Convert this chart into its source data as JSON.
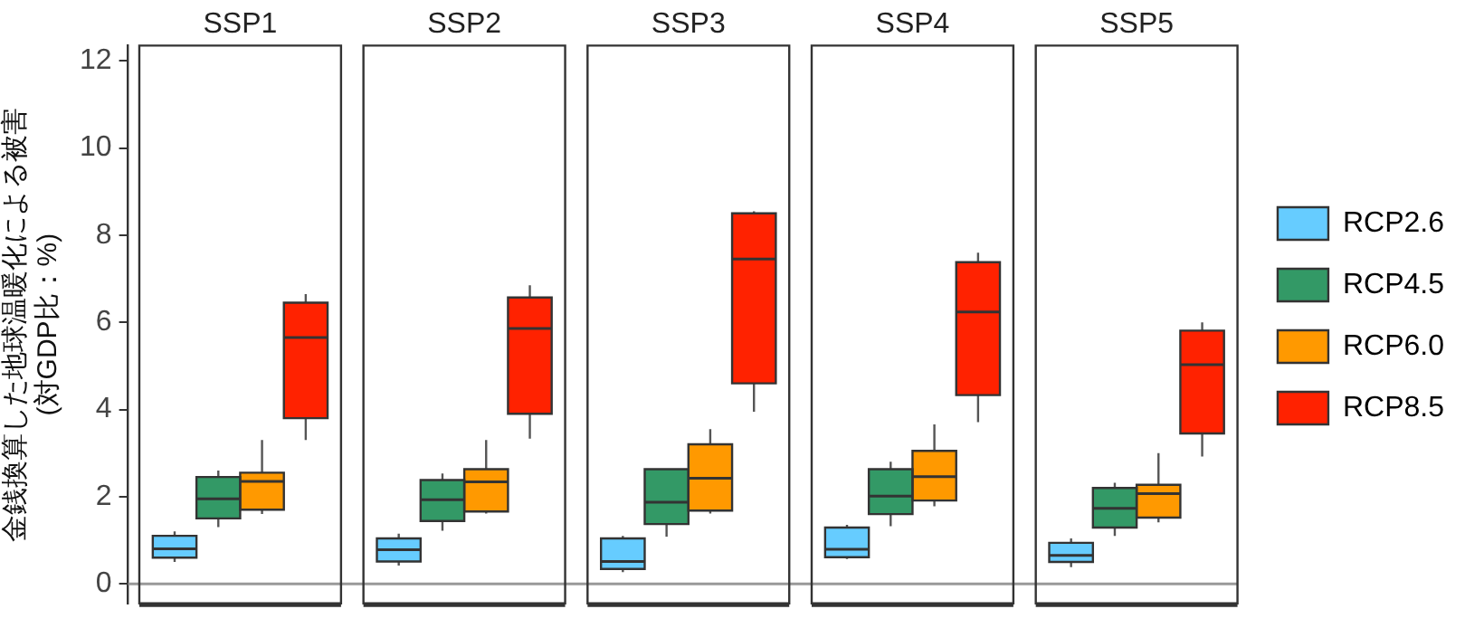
{
  "chart_data": {
    "type": "box",
    "ylabel": "金銭換算した地球温暖化による被害\n(対GDP比：%)",
    "categories": [
      "SSP1",
      "SSP2",
      "SSP3",
      "SSP4",
      "SSP5"
    ],
    "ylim": [
      -0.45,
      12.35
    ],
    "yticks": [
      0,
      2,
      4,
      6,
      8,
      10,
      12
    ],
    "legend": "right",
    "ref_lines": [
      {
        "axis": "y",
        "value": 0,
        "color": "#999999"
      }
    ],
    "series": [
      {
        "name": "RCP2.6",
        "color": "#66ccff",
        "boxes": [
          {
            "low": 0.5,
            "q1": 0.6,
            "median": 0.8,
            "q3": 1.1,
            "high": 1.2
          },
          {
            "low": 0.42,
            "q1": 0.51,
            "median": 0.78,
            "q3": 1.04,
            "high": 1.15
          },
          {
            "low": 0.27,
            "q1": 0.34,
            "median": 0.51,
            "q3": 1.04,
            "high": 1.1
          },
          {
            "low": 0.57,
            "q1": 0.61,
            "median": 0.79,
            "q3": 1.29,
            "high": 1.35
          },
          {
            "low": 0.38,
            "q1": 0.5,
            "median": 0.65,
            "q3": 0.94,
            "high": 1.04
          }
        ]
      },
      {
        "name": "RCP4.5",
        "color": "#339966",
        "boxes": [
          {
            "low": 1.3,
            "q1": 1.5,
            "median": 1.95,
            "q3": 2.45,
            "high": 2.6
          },
          {
            "low": 1.22,
            "q1": 1.44,
            "median": 1.93,
            "q3": 2.38,
            "high": 2.53
          },
          {
            "low": 1.08,
            "q1": 1.37,
            "median": 1.87,
            "q3": 2.63,
            "high": 2.63
          },
          {
            "low": 1.32,
            "q1": 1.6,
            "median": 2.01,
            "q3": 2.63,
            "high": 2.8
          },
          {
            "low": 1.1,
            "q1": 1.29,
            "median": 1.73,
            "q3": 2.2,
            "high": 2.32
          }
        ]
      },
      {
        "name": "RCP6.0",
        "color": "#ff9900",
        "boxes": [
          {
            "low": 1.6,
            "q1": 1.7,
            "median": 2.35,
            "q3": 2.55,
            "high": 3.3
          },
          {
            "low": 1.61,
            "q1": 1.66,
            "median": 2.34,
            "q3": 2.63,
            "high": 3.3
          },
          {
            "low": 1.61,
            "q1": 1.68,
            "median": 2.42,
            "q3": 3.2,
            "high": 3.55
          },
          {
            "low": 1.78,
            "q1": 1.91,
            "median": 2.46,
            "q3": 3.05,
            "high": 3.66
          },
          {
            "low": 1.41,
            "q1": 1.52,
            "median": 2.07,
            "q3": 2.27,
            "high": 3.0
          }
        ]
      },
      {
        "name": "RCP8.5",
        "color": "#ff2200",
        "boxes": [
          {
            "low": 3.3,
            "q1": 3.8,
            "median": 5.65,
            "q3": 6.45,
            "high": 6.65
          },
          {
            "low": 3.33,
            "q1": 3.9,
            "median": 5.86,
            "q3": 6.57,
            "high": 6.85
          },
          {
            "low": 3.95,
            "q1": 4.6,
            "median": 7.45,
            "q3": 8.5,
            "high": 8.55
          },
          {
            "low": 3.71,
            "q1": 4.33,
            "median": 6.24,
            "q3": 7.38,
            "high": 7.6
          },
          {
            "low": 2.92,
            "q1": 3.45,
            "median": 5.03,
            "q3": 5.81,
            "high": 6.0
          }
        ]
      }
    ]
  }
}
